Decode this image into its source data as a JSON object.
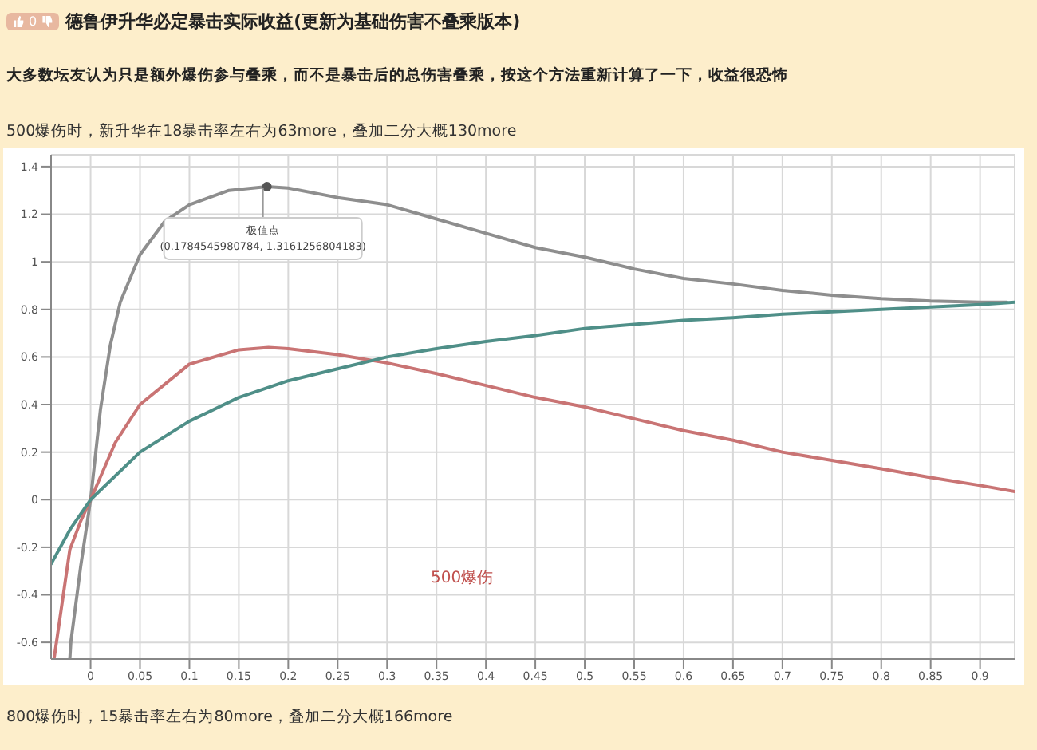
{
  "chart_data": {
    "type": "line",
    "title": "德鲁伊升华必定暴击实际收益(更新为基础伤害不叠乘版本)",
    "subtitle": "大多数坛友认为只是额外爆伤参与叠乘，而不是暴击后的总伤害叠乘，按这个方法重新计算了一下，收益很恐怖",
    "annotations": [
      "0",
      "500爆伤时，新升华在18暴击率左右为63more，叠加二分大概130more",
      {
        "text": "极值点\n(0.1784545980784, 1.3161256804183)",
        "x": 0.1784545980784,
        "y": 1.3161256804183
      },
      "500爆伤",
      "800爆伤时，15暴击率左右为80more，叠加二分大概166more"
    ],
    "xlim": [
      -0.04,
      0.935
    ],
    "ylim": [
      -0.67,
      1.45
    ],
    "xticks": [
      0,
      0.05,
      0.1,
      0.15,
      0.2,
      0.25,
      0.3,
      0.35,
      0.4,
      0.45,
      0.5,
      0.55,
      0.6,
      0.65,
      0.7,
      0.75,
      0.8,
      0.85,
      0.9
    ],
    "yticks": [
      -0.6,
      -0.4,
      -0.2,
      0,
      0.2,
      0.4,
      0.6,
      0.8,
      1,
      1.2,
      1.4
    ],
    "grid": true,
    "marker": "none",
    "line_style": "solid",
    "series": [
      {
        "color": "#8e8e8e",
        "x": [
          -0.021,
          -0.02,
          -0.01,
          0,
          0.01,
          0.02,
          0.03,
          0.05,
          0.075,
          0.1,
          0.14,
          0.1785,
          0.2,
          0.25,
          0.3,
          0.35,
          0.4,
          0.45,
          0.5,
          0.55,
          0.6,
          0.65,
          0.7,
          0.75,
          0.8,
          0.85,
          0.9,
          0.927
        ],
        "values": [
          -0.67,
          -0.6,
          -0.28,
          0,
          0.38,
          0.65,
          0.83,
          1.03,
          1.17,
          1.24,
          1.3,
          1.316,
          1.31,
          1.27,
          1.24,
          1.18,
          1.12,
          1.06,
          1.02,
          0.97,
          0.93,
          0.907,
          0.88,
          0.86,
          0.845,
          0.835,
          0.83,
          0.83
        ]
      },
      {
        "color": "#c97474",
        "x": [
          -0.037,
          -0.021,
          -0.01,
          0,
          0.025,
          0.05,
          0.1,
          0.15,
          0.18,
          0.2,
          0.25,
          0.3,
          0.35,
          0.4,
          0.45,
          0.5,
          0.55,
          0.6,
          0.65,
          0.7,
          0.75,
          0.8,
          0.85,
          0.9,
          0.935
        ],
        "values": [
          -0.67,
          -0.21,
          -0.09,
          0,
          0.24,
          0.4,
          0.57,
          0.63,
          0.64,
          0.635,
          0.61,
          0.575,
          0.53,
          0.48,
          0.43,
          0.39,
          0.34,
          0.29,
          0.25,
          0.2,
          0.165,
          0.13,
          0.093,
          0.06,
          0.034
        ]
      },
      {
        "color": "#4f8f88",
        "x": [
          -0.04,
          -0.02,
          0,
          0.05,
          0.1,
          0.15,
          0.2,
          0.25,
          0.3,
          0.35,
          0.4,
          0.45,
          0.5,
          0.55,
          0.6,
          0.65,
          0.7,
          0.75,
          0.8,
          0.85,
          0.9,
          0.935
        ],
        "values": [
          -0.27,
          -0.12,
          0,
          0.2,
          0.33,
          0.43,
          0.5,
          0.55,
          0.6,
          0.635,
          0.665,
          0.69,
          0.72,
          0.737,
          0.754,
          0.765,
          0.78,
          0.79,
          0.8,
          0.81,
          0.82,
          0.83
        ]
      }
    ]
  }
}
